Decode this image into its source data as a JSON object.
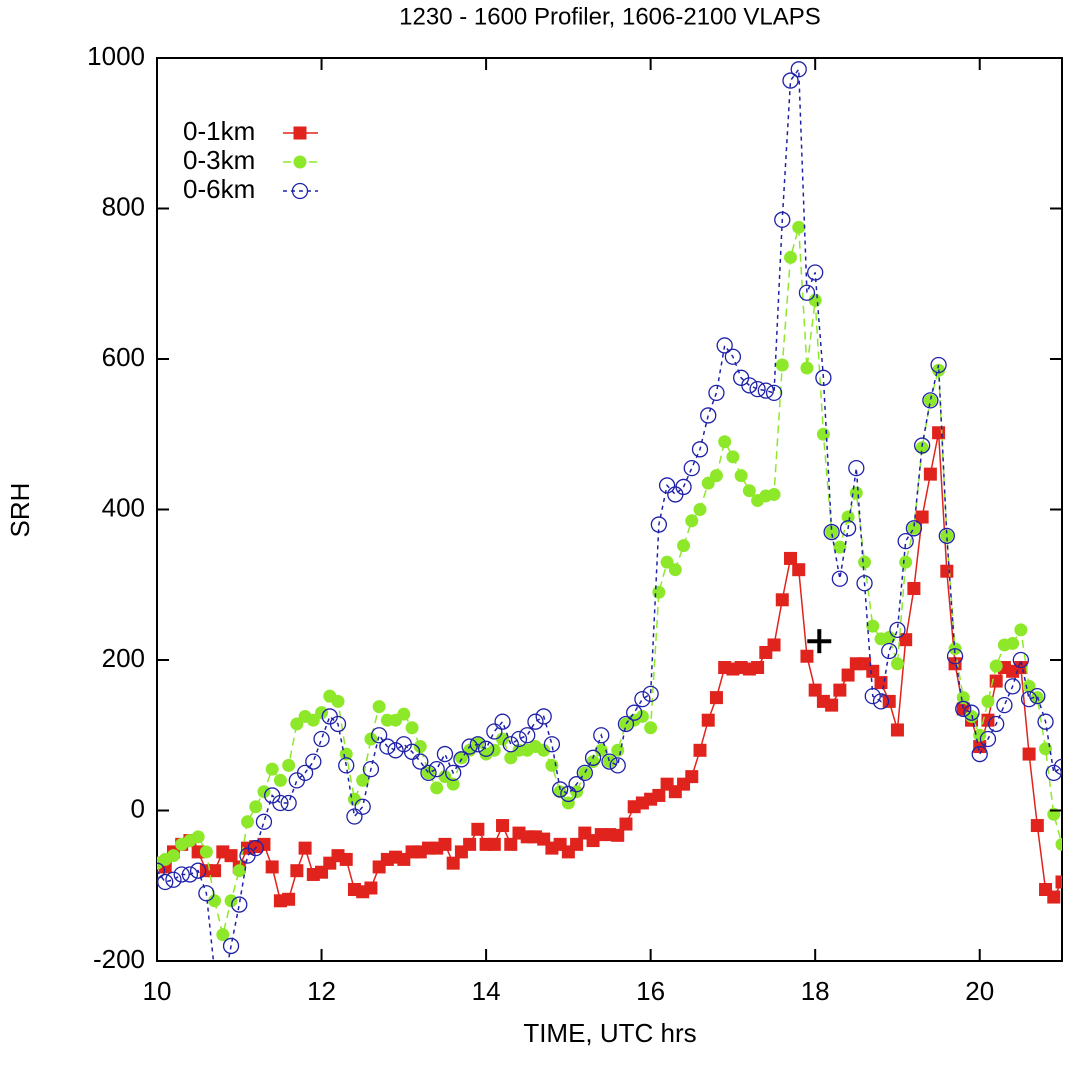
{
  "chart_data": {
    "type": "line",
    "title": "1230 - 1600 Profiler, 1606-2100 VLAPS",
    "x_label": "TIME, UTC hrs",
    "y_label": "SRH",
    "xlim": [
      10,
      21
    ],
    "ylim": [
      -200,
      1000
    ],
    "xticks": [
      10,
      12,
      14,
      16,
      18,
      20
    ],
    "yticks": [
      -200,
      0,
      200,
      400,
      600,
      800,
      1000
    ],
    "legend": "top-left",
    "x": [
      10.0,
      10.1,
      10.2,
      10.3,
      10.4,
      10.5,
      10.6,
      10.7,
      10.8,
      10.9,
      11.0,
      11.1,
      11.2,
      11.3,
      11.4,
      11.5,
      11.6,
      11.7,
      11.8,
      11.9,
      12.0,
      12.1,
      12.2,
      12.3,
      12.4,
      12.5,
      12.6,
      12.7,
      12.8,
      12.9,
      13.0,
      13.1,
      13.2,
      13.3,
      13.4,
      13.5,
      13.6,
      13.7,
      13.8,
      13.9,
      14.0,
      14.1,
      14.2,
      14.3,
      14.4,
      14.5,
      14.6,
      14.7,
      14.8,
      14.9,
      15.0,
      15.1,
      15.2,
      15.3,
      15.4,
      15.5,
      15.6,
      15.7,
      15.8,
      15.9,
      16.0,
      16.1,
      16.2,
      16.3,
      16.4,
      16.5,
      16.6,
      16.7,
      16.8,
      16.9,
      17.0,
      17.1,
      17.2,
      17.3,
      17.4,
      17.5,
      17.6,
      17.7,
      17.8,
      17.9,
      18.0,
      18.1,
      18.2,
      18.3,
      18.4,
      18.5,
      18.6,
      18.7,
      18.8,
      18.9,
      19.0,
      19.1,
      19.2,
      19.3,
      19.4,
      19.5,
      19.6,
      19.7,
      19.8,
      19.9,
      20.0,
      20.1,
      20.2,
      20.3,
      20.4,
      20.5,
      20.6,
      20.7,
      20.8,
      20.9,
      21.0
    ],
    "series": [
      {
        "name": "0-1km",
        "color": "#e0231c",
        "marker": "square",
        "dash": "solid",
        "values": [
          -70,
          -75,
          -55,
          -45,
          -40,
          -55,
          -80,
          -80,
          -55,
          -60,
          -75,
          -50,
          -48,
          -45,
          -75,
          -120,
          -118,
          -80,
          -50,
          -85,
          -82,
          -70,
          -60,
          -65,
          -105,
          -108,
          -103,
          -75,
          -65,
          -62,
          -65,
          -55,
          -55,
          -50,
          -50,
          -45,
          -70,
          -55,
          -45,
          -25,
          -45,
          -45,
          -20,
          -45,
          -30,
          -35,
          -35,
          -38,
          -50,
          -45,
          -55,
          -45,
          -30,
          -40,
          -32,
          -32,
          -33,
          -18,
          5,
          10,
          15,
          20,
          35,
          25,
          35,
          45,
          80,
          120,
          150,
          190,
          188,
          190,
          188,
          190,
          210,
          220,
          280,
          335,
          320,
          205,
          160,
          145,
          140,
          160,
          180,
          195,
          195,
          185,
          170,
          145,
          107,
          227,
          295,
          390,
          447,
          502,
          318,
          195,
          135,
          120,
          85,
          120,
          172,
          190,
          185,
          190,
          75,
          -20,
          -105,
          -115,
          -95
        ]
      },
      {
        "name": "0-3km",
        "color": "#8ee82a",
        "marker": "dot",
        "dash": "dashed",
        "values": [
          -70,
          -65,
          -60,
          -45,
          -40,
          -35,
          -55,
          -120,
          -165,
          -120,
          -80,
          -15,
          5,
          25,
          55,
          40,
          60,
          115,
          125,
          120,
          130,
          152,
          145,
          75,
          15,
          40,
          95,
          138,
          120,
          120,
          128,
          110,
          85,
          50,
          30,
          45,
          35,
          70,
          80,
          90,
          75,
          80,
          95,
          70,
          80,
          80,
          85,
          80,
          60,
          25,
          10,
          25,
          50,
          65,
          80,
          65,
          80,
          115,
          120,
          125,
          110,
          290,
          330,
          320,
          352,
          385,
          400,
          435,
          445,
          490,
          470,
          445,
          425,
          412,
          418,
          420,
          592,
          735,
          775,
          588,
          678,
          500,
          370,
          350,
          390,
          422,
          330,
          245,
          228,
          230,
          195,
          330,
          375,
          482,
          545,
          585,
          365,
          215,
          150,
          125,
          100,
          145,
          192,
          220,
          222,
          240,
          165,
          150,
          82,
          -5,
          -45
        ]
      },
      {
        "name": "0-6km",
        "color": "#1f22a8",
        "marker": "ring",
        "dash": "dotted",
        "values": [
          -80,
          -95,
          -92,
          -85,
          -85,
          -80,
          -110,
          -215,
          -240,
          -180,
          -125,
          -60,
          -50,
          -15,
          20,
          10,
          10,
          40,
          50,
          65,
          95,
          125,
          115,
          60,
          -8,
          5,
          55,
          100,
          85,
          80,
          88,
          78,
          65,
          50,
          55,
          75,
          50,
          68,
          85,
          88,
          82,
          105,
          118,
          88,
          95,
          100,
          118,
          125,
          88,
          28,
          22,
          35,
          50,
          70,
          100,
          65,
          60,
          115,
          130,
          148,
          155,
          380,
          432,
          420,
          430,
          455,
          480,
          525,
          555,
          618,
          603,
          575,
          565,
          560,
          558,
          555,
          785,
          970,
          985,
          688,
          715,
          575,
          370,
          308,
          375,
          455,
          302,
          152,
          145,
          212,
          240,
          358,
          375,
          485,
          545,
          592,
          365,
          205,
          135,
          130,
          75,
          95,
          115,
          140,
          165,
          200,
          148,
          152,
          118,
          50,
          58
        ]
      }
    ],
    "marker_point": {
      "x": 18.05,
      "y": 225
    }
  }
}
